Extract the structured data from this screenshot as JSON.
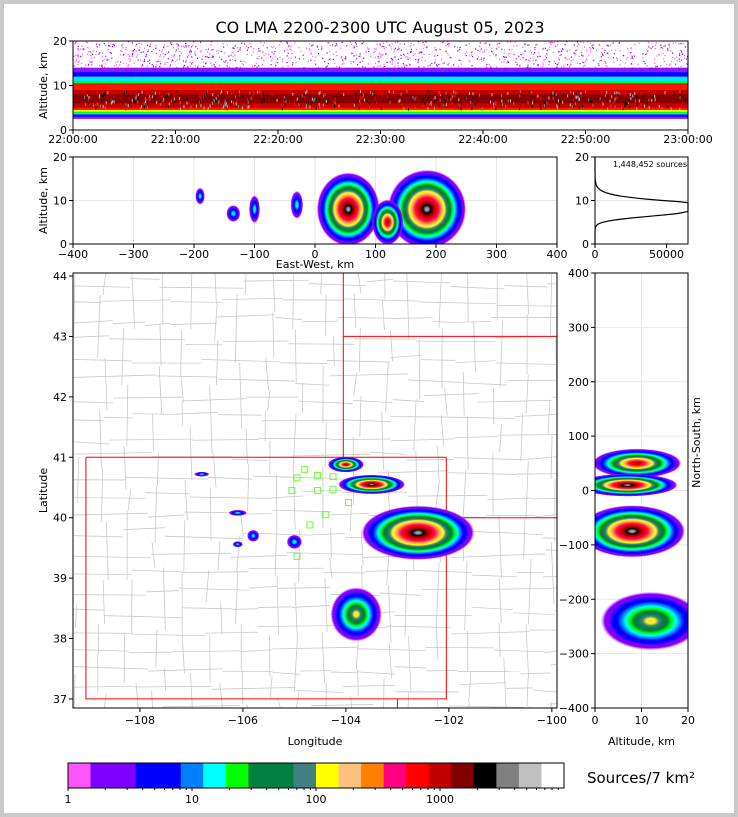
{
  "title": "CO LMA 2200-2300 UTC August 05, 2023",
  "chart_data": [
    {
      "panel": "altitude-time",
      "type": "heatmap",
      "ylabel": "Altitude, km",
      "xlim": [
        "22:00:00",
        "23:00:00"
      ],
      "ylim": [
        0,
        20
      ],
      "x_ticks": [
        "22:00:00",
        "22:10:00",
        "22:20:00",
        "22:30:00",
        "22:40:00",
        "22:50:00",
        "23:00:00"
      ],
      "y_ticks": [
        0,
        10,
        20
      ],
      "band_km": {
        "dense": [
          3.5,
          12
        ],
        "core": [
          5,
          9
        ],
        "sparse_top": 20
      }
    },
    {
      "panel": "east-west-altitude",
      "type": "heatmap",
      "xlabel": "East-West, km",
      "ylabel": "Altitude, km",
      "xlim": [
        -400,
        400
      ],
      "ylim": [
        0,
        20
      ],
      "x_ticks": [
        -400,
        -300,
        -200,
        -100,
        0,
        100,
        200,
        300,
        400
      ],
      "y_ticks": [
        0,
        10,
        20
      ],
      "cells": [
        {
          "x": 55,
          "alt": 8,
          "w": 80,
          "h": 13,
          "level": "max"
        },
        {
          "x": 185,
          "alt": 8,
          "w": 100,
          "h": 14,
          "level": "max"
        },
        {
          "x": 120,
          "alt": 5,
          "w": 40,
          "h": 8,
          "level": "high"
        },
        {
          "x": -100,
          "alt": 8,
          "w": 14,
          "h": 5,
          "level": "low"
        },
        {
          "x": -135,
          "alt": 7,
          "w": 18,
          "h": 3,
          "level": "low"
        },
        {
          "x": -190,
          "alt": 11,
          "w": 12,
          "h": 3,
          "level": "low"
        },
        {
          "x": -30,
          "alt": 9,
          "w": 16,
          "h": 5,
          "level": "low"
        }
      ]
    },
    {
      "panel": "altitude-histogram",
      "type": "line",
      "annotation": "1,448,452 sources",
      "xlim": [
        0,
        65000
      ],
      "ylim": [
        0,
        20
      ],
      "x_ticks": [
        0,
        50000
      ],
      "y_ticks": [
        0,
        10,
        20
      ],
      "peak_alt_km": 7.5,
      "peak_count": 63000
    },
    {
      "panel": "plan-view",
      "type": "heatmap",
      "xlabel": "Longitude",
      "ylabel": "Latitude",
      "xlim": [
        -109.3,
        -99.9
      ],
      "ylim": [
        36.85,
        44.05
      ],
      "x_ticks": [
        -108,
        -106,
        -104,
        -102,
        -100
      ],
      "y_ticks": [
        37,
        38,
        39,
        40,
        41,
        42,
        43,
        44
      ],
      "storms": [
        {
          "lon": -102.6,
          "lat": 39.75,
          "rx": 1.1,
          "ry": 0.45,
          "level": "max"
        },
        {
          "lon": -103.5,
          "lat": 40.55,
          "rx": 0.65,
          "ry": 0.16,
          "level": "max"
        },
        {
          "lon": -104.0,
          "lat": 40.88,
          "rx": 0.35,
          "ry": 0.13,
          "level": "high"
        },
        {
          "lon": -103.8,
          "lat": 38.4,
          "rx": 0.5,
          "ry": 0.45,
          "level": "mid"
        },
        {
          "lon": -105.8,
          "lat": 39.7,
          "rx": 0.12,
          "ry": 0.1,
          "level": "low"
        },
        {
          "lon": -105.0,
          "lat": 39.6,
          "rx": 0.15,
          "ry": 0.12,
          "level": "low"
        },
        {
          "lon": -106.1,
          "lat": 40.08,
          "rx": 0.18,
          "ry": 0.05,
          "level": "low"
        },
        {
          "lon": -106.1,
          "lat": 39.56,
          "rx": 0.1,
          "ry": 0.05,
          "level": "low"
        },
        {
          "lon": -106.8,
          "lat": 40.72,
          "rx": 0.15,
          "ry": 0.04,
          "level": "low"
        }
      ],
      "stations": [
        [
          -104.8,
          40.8
        ],
        [
          -104.55,
          40.7
        ],
        [
          -104.25,
          40.68
        ],
        [
          -104.95,
          40.66
        ],
        [
          -105.05,
          40.45
        ],
        [
          -104.55,
          40.45
        ],
        [
          -104.25,
          40.47
        ],
        [
          -103.95,
          40.25
        ],
        [
          -104.4,
          40.05
        ],
        [
          -104.7,
          39.88
        ],
        [
          -104.95,
          39.36
        ]
      ],
      "borders": [
        [
          [
            -109.05,
            41.0
          ],
          [
            -102.05,
            41.0
          ],
          [
            -102.05,
            37.0
          ],
          [
            -109.05,
            37.0
          ],
          [
            -109.05,
            41.0
          ]
        ],
        [
          [
            -104.05,
            41.0
          ],
          [
            -104.05,
            44.05
          ]
        ],
        [
          [
            -104.05,
            43.0
          ],
          [
            -99.9,
            43.0
          ]
        ],
        [
          [
            -102.05,
            40.0
          ],
          [
            -99.9,
            40.0
          ]
        ],
        [
          [
            -103.0,
            37.0
          ],
          [
            -103.0,
            36.85
          ]
        ]
      ]
    },
    {
      "panel": "north-south-altitude",
      "type": "heatmap",
      "xlabel": "Altitude, km",
      "ylabel": "North-South, km",
      "xlim": [
        0,
        20
      ],
      "ylim": [
        -400,
        400
      ],
      "x_ticks": [
        0,
        10,
        20
      ],
      "y_ticks": [
        -400,
        -300,
        -200,
        -100,
        0,
        100,
        200,
        300,
        400
      ],
      "cells": [
        {
          "alt": 9,
          "ns": 50,
          "w": 16,
          "h": 45,
          "level": "high"
        },
        {
          "alt": 7,
          "ns": 10,
          "w": 18,
          "h": 35,
          "level": "max"
        },
        {
          "alt": 8,
          "ns": -75,
          "w": 19,
          "h": 80,
          "level": "max"
        },
        {
          "alt": 12,
          "ns": -240,
          "w": 18,
          "h": 90,
          "level": "mid"
        }
      ]
    }
  ],
  "colorbar": {
    "label": "Sources/7 km²",
    "tick_labels": [
      "1",
      "10",
      "100",
      "1000"
    ],
    "colors": [
      "#ff55ff",
      "#8000ff",
      "#8000ff",
      "#0000ff",
      "#0000ff",
      "#0080ff",
      "#00ffff",
      "#00ff00",
      "#008040",
      "#008040",
      "#408080",
      "#ffff00",
      "#ffc080",
      "#ff8000",
      "#ff0080",
      "#ff0000",
      "#c00000",
      "#800000",
      "#000000",
      "#808080",
      "#c0c0c0",
      "#ffffff"
    ]
  }
}
